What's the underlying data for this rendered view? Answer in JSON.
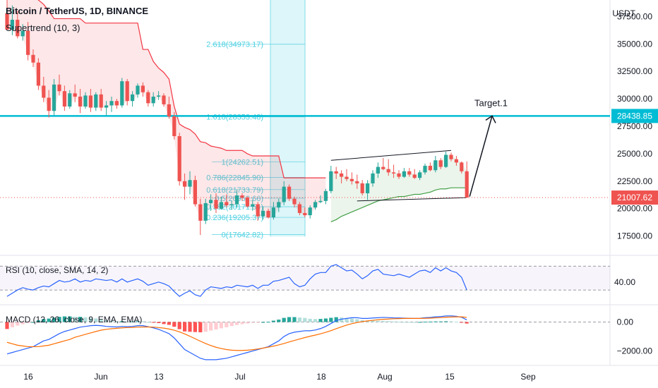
{
  "header": {
    "symbol": "Bitcoin / TetherUS, 1D, BINANCE",
    "indicator": "Supertrend (10, 3)"
  },
  "rsi_label": "RSI (10, close, SMA, 14, 2)",
  "macd_label": "MACD (12, 26, close, 9, EMA, EMA)",
  "price_axis": {
    "unit": "USDT",
    "ticks": [
      "37500.00",
      "35000.00",
      "32500.00",
      "30000.00",
      "27500.00",
      "25000.00",
      "22500.00",
      "20000.00",
      "17500.00"
    ],
    "highlight": {
      "value": "28438.85",
      "color": "#00bcd4"
    },
    "last_price": {
      "value": "21007.62",
      "color": "#f23645"
    }
  },
  "rsi_axis": {
    "ticks": [
      "40.00"
    ]
  },
  "macd_axis": {
    "ticks": [
      "0.00",
      "−2000.00"
    ]
  },
  "time_axis": [
    "16",
    "Jun",
    "13",
    "Jul",
    "18",
    "Aug",
    "15",
    "Sep"
  ],
  "fib_levels": [
    {
      "label": "2.618(34973.17)",
      "value": 34973.17
    },
    {
      "label": "1.618(28353.48)",
      "value": 28353.48
    },
    {
      "label": "1(24262.51)",
      "value": 24262.51
    },
    {
      "label": "0.786(22845.90)",
      "value": 22845.9
    },
    {
      "label": "0.618(21733.79)",
      "value": 21733.79
    },
    {
      "label": "0.5(20952.66)",
      "value": 20952.66
    },
    {
      "label": "0.382(20171.54)",
      "value": 20171.54
    },
    {
      "label": "0.236(19205.37)",
      "value": 19205.37
    },
    {
      "label": "0(17642.82)",
      "value": 17642.82
    }
  ],
  "annotation": {
    "target_label": "Target.1"
  },
  "colors": {
    "up": "#26a69a",
    "down": "#ef5350",
    "supertrend_down": "#f23645",
    "supertrend_up": "#43a047",
    "target_line": "#00bcd4",
    "fib": "#4dd0e1",
    "rsi": "#2962ff",
    "macd": "#2962ff",
    "signal": "#ff6d00"
  },
  "chart_data": {
    "type": "candlestick",
    "period": "1D",
    "y_range": [
      16000,
      39000
    ],
    "candles": [
      [
        37800,
        39000,
        36500,
        36300
      ],
      [
        36300,
        38500,
        35800,
        37200
      ],
      [
        37200,
        38000,
        35500,
        35700
      ],
      [
        35700,
        36800,
        35300,
        36200
      ],
      [
        36200,
        37000,
        33500,
        34000
      ],
      [
        34000,
        34500,
        32900,
        33300
      ],
      [
        33300,
        33700,
        30800,
        31200
      ],
      [
        31200,
        32000,
        29700,
        30100
      ],
      [
        30100,
        30800,
        28300,
        28900
      ],
      [
        28900,
        31800,
        28500,
        31300
      ],
      [
        31300,
        32200,
        30300,
        30700
      ],
      [
        30700,
        31200,
        28900,
        29300
      ],
      [
        29300,
        30800,
        29100,
        30500
      ],
      [
        30500,
        31300,
        29700,
        30200
      ],
      [
        30200,
        30900,
        28700,
        29300
      ],
      [
        29300,
        30600,
        29100,
        30300
      ],
      [
        30300,
        30900,
        28800,
        29200
      ],
      [
        29200,
        30600,
        28900,
        30400
      ],
      [
        30400,
        30900,
        28900,
        29200
      ],
      [
        29200,
        29800,
        28500,
        29400
      ],
      [
        29400,
        30200,
        28800,
        29800
      ],
      [
        29800,
        30000,
        29100,
        29400
      ],
      [
        29400,
        31900,
        29200,
        31600
      ],
      [
        31600,
        31800,
        29400,
        29800
      ],
      [
        29800,
        30700,
        29300,
        30400
      ],
      [
        30400,
        31400,
        30100,
        31200
      ],
      [
        31200,
        31500,
        30200,
        30600
      ],
      [
        30600,
        30800,
        29300,
        29600
      ],
      [
        29600,
        30600,
        29300,
        30200
      ],
      [
        30200,
        30700,
        29900,
        30300
      ],
      [
        30300,
        30500,
        29300,
        29500
      ],
      [
        29500,
        30200,
        28200,
        28400
      ],
      [
        28400,
        28800,
        26300,
        26600
      ],
      [
        26600,
        26900,
        22100,
        22500
      ],
      [
        22500,
        23200,
        20800,
        22000
      ],
      [
        22000,
        23400,
        21300,
        22600
      ],
      [
        22600,
        23000,
        20200,
        20400
      ],
      [
        20400,
        20900,
        17600,
        18900
      ],
      [
        18900,
        20900,
        18600,
        20500
      ],
      [
        20500,
        21300,
        19800,
        20800
      ],
      [
        20800,
        21400,
        19600,
        20000
      ],
      [
        20000,
        21100,
        19900,
        20600
      ],
      [
        20600,
        21300,
        20100,
        20300
      ],
      [
        20300,
        20700,
        19900,
        20400
      ],
      [
        20400,
        21700,
        20100,
        21200
      ],
      [
        21200,
        21400,
        20700,
        21000
      ],
      [
        21000,
        21100,
        20100,
        20200
      ],
      [
        20200,
        20800,
        19800,
        20400
      ],
      [
        20400,
        20600,
        18900,
        19300
      ],
      [
        19300,
        20200,
        19000,
        19800
      ],
      [
        19800,
        20000,
        19100,
        19200
      ],
      [
        19200,
        20600,
        19000,
        20100
      ],
      [
        20100,
        20900,
        19700,
        20600
      ],
      [
        20600,
        22500,
        20300,
        22000
      ],
      [
        22000,
        22200,
        20700,
        20900
      ],
      [
        20900,
        21100,
        20100,
        20400
      ],
      [
        20400,
        20600,
        19400,
        19600
      ],
      [
        19600,
        20100,
        19200,
        19400
      ],
      [
        19400,
        20300,
        19100,
        20100
      ],
      [
        20100,
        20800,
        19900,
        20600
      ],
      [
        20600,
        21200,
        20500,
        20700
      ],
      [
        20700,
        21800,
        20400,
        21600
      ],
      [
        21600,
        23900,
        21400,
        23400
      ],
      [
        23400,
        23800,
        22700,
        23200
      ],
      [
        23200,
        23500,
        22300,
        22900
      ],
      [
        22900,
        23600,
        22500,
        22700
      ],
      [
        22700,
        23300,
        22200,
        22500
      ],
      [
        22500,
        23100,
        21800,
        22300
      ],
      [
        22300,
        22600,
        21200,
        21400
      ],
      [
        21400,
        22600,
        20800,
        22300
      ],
      [
        22300,
        23500,
        22000,
        23200
      ],
      [
        23200,
        24200,
        22800,
        23800
      ],
      [
        23800,
        24600,
        23500,
        23600
      ],
      [
        23600,
        24500,
        23000,
        23300
      ],
      [
        23300,
        24000,
        22800,
        23200
      ],
      [
        23200,
        23500,
        22700,
        22900
      ],
      [
        22900,
        23700,
        22800,
        23400
      ],
      [
        23400,
        23700,
        22900,
        23100
      ],
      [
        23100,
        23600,
        22700,
        22800
      ],
      [
        22800,
        23500,
        22600,
        23300
      ],
      [
        23300,
        24100,
        23100,
        23900
      ],
      [
        23900,
        24200,
        23400,
        23500
      ],
      [
        23500,
        24800,
        23300,
        24400
      ],
      [
        24400,
        24600,
        23600,
        23800
      ],
      [
        23800,
        25200,
        23700,
        24900
      ],
      [
        24900,
        25100,
        24300,
        24500
      ],
      [
        24500,
        24800,
        23900,
        24200
      ],
      [
        24200,
        24300,
        23200,
        23400
      ],
      [
        23400,
        24300,
        21100,
        21008
      ]
    ],
    "supertrend": [
      39500,
      39400,
      39300,
      39300,
      39300,
      39300,
      39000,
      38600,
      38000,
      37300,
      37300,
      37300,
      37300,
      37300,
      37300,
      36900,
      36900,
      36900,
      36900,
      36900,
      36900,
      36900,
      36900,
      36900,
      36900,
      36900,
      34500,
      34500,
      33400,
      32800,
      32400,
      31800,
      29300,
      27700,
      27400,
      27200,
      26800,
      26100,
      26000,
      25700,
      25600,
      25500,
      25300,
      25300,
      25300,
      25300,
      25000,
      24800,
      24800,
      24800,
      24800,
      24800,
      24800,
      22800,
      22800,
      22800,
      22800,
      22800,
      22800,
      22800,
      22800,
      22800,
      18800,
      19000,
      19300,
      19500,
      19700,
      19900,
      20100,
      20300,
      20500,
      20700,
      20800,
      20900,
      21000,
      21100,
      21100,
      21200,
      21300,
      21300,
      21400,
      21500,
      21700,
      21800,
      21800,
      21900,
      21900,
      21900,
      21900
    ],
    "target_level": 28438.85,
    "last_price": 21007.62,
    "rsi": [
      22,
      26,
      30,
      33,
      31,
      30,
      33,
      35,
      34,
      38,
      42,
      40,
      41,
      44,
      40,
      42,
      41,
      44,
      43,
      42,
      43,
      40,
      44,
      40,
      42,
      44,
      41,
      36,
      38,
      40,
      38,
      35,
      28,
      22,
      26,
      29,
      24,
      22,
      30,
      34,
      33,
      32,
      34,
      33,
      36,
      35,
      34,
      36,
      32,
      36,
      36,
      41,
      42,
      44,
      46,
      38,
      34,
      36,
      44,
      50,
      52,
      52,
      60,
      62,
      58,
      54,
      55,
      50,
      44,
      48,
      54,
      56,
      50,
      49,
      48,
      50,
      48,
      46,
      50,
      54,
      55,
      52,
      58,
      54,
      58,
      54,
      52,
      46,
      30
    ],
    "macd": [
      -2200,
      -2100,
      -2000,
      -1900,
      -1800,
      -1700,
      -1500,
      -1300,
      -1200,
      -1000,
      -800,
      -650,
      -550,
      -450,
      -350,
      -300,
      -250,
      -230,
      -250,
      -300,
      -320,
      -340,
      -300,
      -320,
      -300,
      -250,
      -250,
      -320,
      -400,
      -500,
      -650,
      -800,
      -1100,
      -1500,
      -1900,
      -2100,
      -2300,
      -2500,
      -2600,
      -2600,
      -2600,
      -2550,
      -2500,
      -2400,
      -2300,
      -2200,
      -2100,
      -2000,
      -1900,
      -1800,
      -1700,
      -1500,
      -1300,
      -1000,
      -800,
      -700,
      -650,
      -600,
      -600,
      -550,
      -450,
      -300,
      -100,
      100,
      200,
      250,
      300,
      300,
      250,
      250,
      280,
      300,
      320,
      310,
      290,
      280,
      270,
      260,
      250,
      260,
      300,
      320,
      360,
      380,
      420,
      430,
      400,
      330,
      150
    ],
    "signal": [
      -1400,
      -1500,
      -1600,
      -1650,
      -1700,
      -1700,
      -1700,
      -1650,
      -1600,
      -1500,
      -1400,
      -1300,
      -1200,
      -1050,
      -950,
      -850,
      -750,
      -650,
      -560,
      -500,
      -460,
      -430,
      -400,
      -380,
      -370,
      -350,
      -340,
      -340,
      -350,
      -380,
      -420,
      -480,
      -560,
      -680,
      -820,
      -980,
      -1150,
      -1320,
      -1480,
      -1620,
      -1740,
      -1830,
      -1900,
      -1940,
      -1960,
      -1960,
      -1940,
      -1910,
      -1860,
      -1800,
      -1730,
      -1660,
      -1580,
      -1480,
      -1370,
      -1270,
      -1170,
      -1070,
      -980,
      -900,
      -810,
      -710,
      -590,
      -460,
      -330,
      -210,
      -110,
      -30,
      30,
      80,
      120,
      160,
      190,
      210,
      230,
      240,
      250,
      250,
      250,
      250,
      260,
      270,
      290,
      310,
      330,
      350,
      360,
      360,
      320
    ]
  }
}
